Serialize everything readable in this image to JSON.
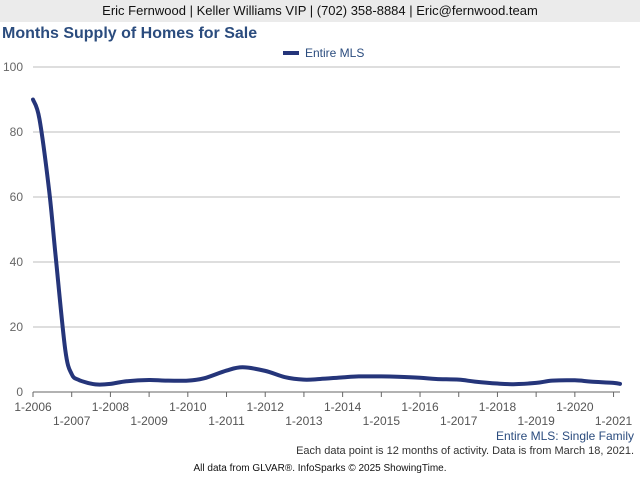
{
  "header": {
    "contact": "Eric Fernwood | Keller Williams VIP | (702) 358-8884 | Eric@fernwood.team",
    "title": "Months Supply of Homes for Sale"
  },
  "chart_data": {
    "type": "line",
    "title": "Months Supply of Homes for Sale",
    "subtitle": "Entire MLS: Single Family",
    "ylim": [
      0,
      100
    ],
    "yticks": [
      0,
      20,
      40,
      60,
      80,
      100
    ],
    "xlim": [
      "2006-01",
      "2021-03"
    ],
    "xticks": [
      "1-2006",
      "1-2007",
      "1-2008",
      "1-2009",
      "1-2010",
      "1-2011",
      "1-2012",
      "1-2013",
      "1-2014",
      "1-2015",
      "1-2016",
      "1-2017",
      "1-2018",
      "1-2019",
      "1-2020",
      "1-2021"
    ],
    "legend_position": "top-center",
    "grid": "horizontal",
    "series": [
      {
        "name": "Entire MLS",
        "color": "#25357a",
        "points": [
          [
            "2006-01",
            90
          ],
          [
            "2006-03",
            84
          ],
          [
            "2006-06",
            62
          ],
          [
            "2006-08",
            42
          ],
          [
            "2006-11",
            13
          ],
          [
            "2007-01",
            5.5
          ],
          [
            "2007-03",
            3.8
          ],
          [
            "2007-06",
            2.8
          ],
          [
            "2007-09",
            2.3
          ],
          [
            "2008-01",
            2.5
          ],
          [
            "2008-06",
            3.3
          ],
          [
            "2009-01",
            3.7
          ],
          [
            "2009-06",
            3.5
          ],
          [
            "2010-01",
            3.5
          ],
          [
            "2010-06",
            4.2
          ],
          [
            "2011-01",
            6.6
          ],
          [
            "2011-06",
            7.6
          ],
          [
            "2012-01",
            6.5
          ],
          [
            "2012-07",
            4.6
          ],
          [
            "2013-01",
            3.8
          ],
          [
            "2013-06",
            4
          ],
          [
            "2014-01",
            4.5
          ],
          [
            "2014-06",
            4.8
          ],
          [
            "2015-01",
            4.8
          ],
          [
            "2015-06",
            4.7
          ],
          [
            "2016-01",
            4.4
          ],
          [
            "2016-06",
            4
          ],
          [
            "2017-01",
            3.8
          ],
          [
            "2017-06",
            3.2
          ],
          [
            "2018-01",
            2.6
          ],
          [
            "2018-06",
            2.4
          ],
          [
            "2019-01",
            2.8
          ],
          [
            "2019-06",
            3.5
          ],
          [
            "2020-01",
            3.6
          ],
          [
            "2020-06",
            3.2
          ],
          [
            "2021-01",
            2.8
          ],
          [
            "2021-03",
            2.5
          ]
        ]
      }
    ]
  },
  "footnotes": {
    "data_note": "Each data point is 12 months of activity. Data is from March 18, 2021.",
    "source": "All data from GLVAR®. InfoSparks © 2025 ShowingTime."
  }
}
